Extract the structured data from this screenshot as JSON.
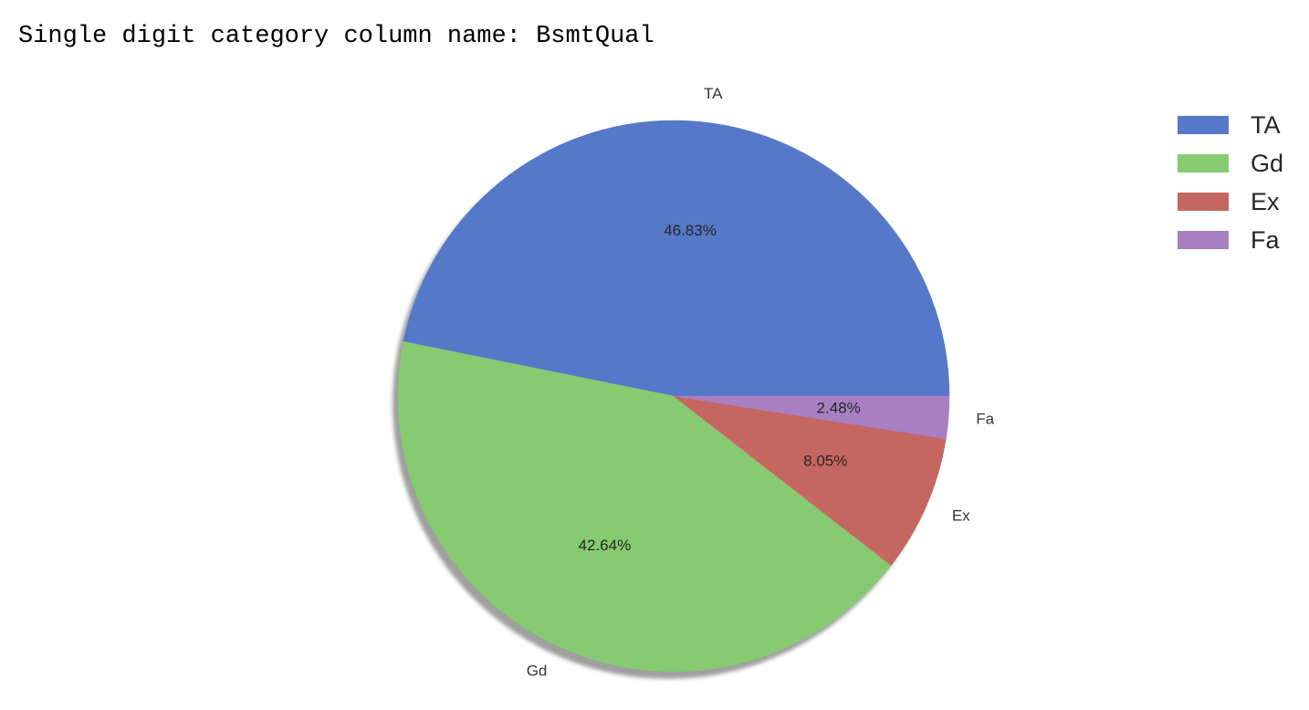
{
  "output": {
    "text": "Single digit category column name: BsmtQual"
  },
  "chart_data": {
    "type": "pie",
    "title": "",
    "startangle": 0,
    "counterclock": true,
    "shadow": true,
    "autopct": "%.2f%%",
    "legend_position": "upper-right",
    "categories": [
      "TA",
      "Gd",
      "Ex",
      "Fa"
    ],
    "values": [
      46.83,
      42.64,
      8.05,
      2.48
    ],
    "pct_labels": [
      "46.83%",
      "42.64%",
      "8.05%",
      "2.48%"
    ],
    "colors": [
      "#5578c9",
      "#86ca71",
      "#c66661",
      "#a97fc3"
    ]
  }
}
